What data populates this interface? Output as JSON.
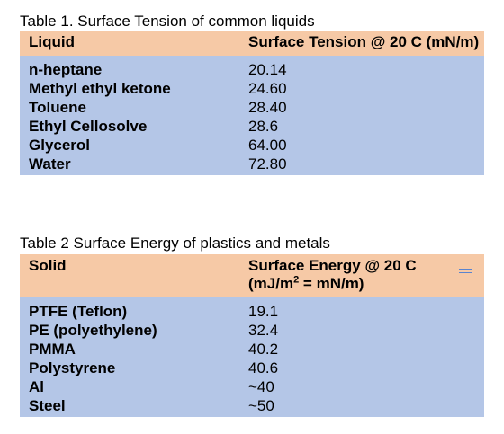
{
  "table1": {
    "caption": "Table 1. Surface Tension of common liquids",
    "headers": [
      "Liquid",
      "Surface Tension @ 20 C (mN/m)"
    ],
    "rows": [
      [
        "n-heptane",
        "20.14"
      ],
      [
        "Methyl ethyl ketone",
        "24.60"
      ],
      [
        "Toluene",
        "28.40"
      ],
      [
        "Ethyl Cellosolve",
        "28.6"
      ],
      [
        "Glycerol",
        "64.00"
      ],
      [
        "Water",
        "72.80"
      ]
    ]
  },
  "table2": {
    "caption": "Table 2 Surface Energy of plastics and metals",
    "headers": [
      "Solid",
      "Surface Energy @ 20 C"
    ],
    "header_unit_prefix": "(mJ/m",
    "header_unit_sup": "2",
    "header_unit_suffix": " = mN/m)",
    "rows": [
      [
        "PTFE (Teflon)",
        "19.1"
      ],
      [
        "PE (polyethylene)",
        "32.4"
      ],
      [
        "PMMA",
        "40.2"
      ],
      [
        "Polystyrene",
        "40.6"
      ],
      [
        "Al",
        "~40"
      ],
      [
        "Steel",
        "~50"
      ]
    ]
  },
  "colors": {
    "header_bg": "#f6c9a6",
    "body_bg": "#b4c6e7",
    "handle": "#5b84cf"
  }
}
